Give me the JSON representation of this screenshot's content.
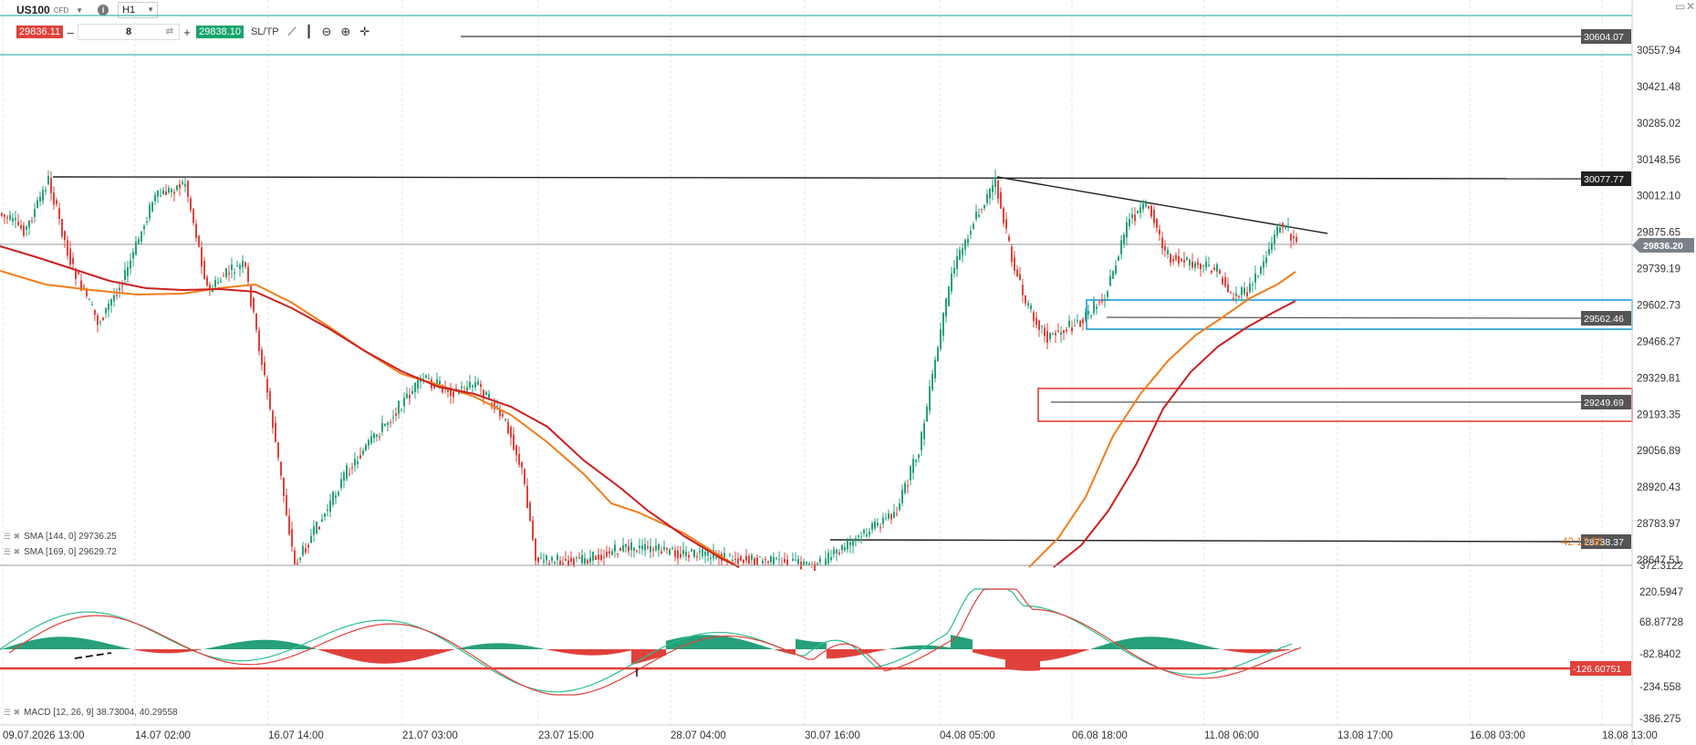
{
  "header": {
    "symbol": "US100",
    "symbol_type": "CFD",
    "timeframe": "H1"
  },
  "trade": {
    "sell_price": "29836.11",
    "quantity": "8",
    "buy_price": "29838.10",
    "sltp_label": "SL/TP"
  },
  "price_axis": [
    "30557.94",
    "30421.48",
    "30285.02",
    "30148.56",
    "30012.10",
    "29875.65",
    "29739.19",
    "29602.73",
    "29466.27",
    "29329.81",
    "29193.35",
    "29056.89",
    "28920.43",
    "28783.97",
    "28647.51"
  ],
  "price_tags": {
    "top_line": "30604.07",
    "resistance": "30077.77",
    "current": "29836.20",
    "blue_zone": "29562.46",
    "red_zone": "29249.69",
    "lower_line": "28738.37",
    "lower_overlay": "42 17:56"
  },
  "macd_axis": [
    "372.3122",
    "220.5947",
    "68.87728",
    "-82.8402",
    "-234.558",
    "-386.275"
  ],
  "macd_tag": "-126.60751",
  "indicators": {
    "sma1": "SMA [144, 0] 29736.25",
    "sma2": "SMA [169, 0] 29629.72",
    "macd": "MACD [12, 26, 9] 38.73004, 40.29558"
  },
  "time_axis": [
    "09.07.2026 13:00",
    "14.07 02:00",
    "16.07 14:00",
    "21.07 03:00",
    "23.07 15:00",
    "28.07 04:00",
    "30.07 16:00",
    "04.08 05:00",
    "06.08 18:00",
    "11.08 06:00",
    "13.08 17:00",
    "16.08 03:00",
    "18.08 13:00"
  ],
  "colors": {
    "bull": "#26a07a",
    "bear": "#e0413b",
    "sma144": "#f07d1a",
    "sma169": "#cc1f1f",
    "blue_zone": "#1e9bd7",
    "red_zone": "#e0413b",
    "sell": "#e0413b",
    "buy": "#17a56b"
  },
  "icons": [
    "info-icon",
    "line-chart-icon",
    "candles-icon",
    "zoom-out-icon",
    "zoom-in-icon",
    "crosshair-icon"
  ],
  "chart_data": {
    "type": "line",
    "symbol": "US100",
    "timeframe": "H1",
    "x_range": [
      "09.07.2026 13:00",
      "18.08 13:00"
    ],
    "ylim": [
      28647.51,
      30557.94
    ],
    "key_points": [
      {
        "t": "09.07.2026 13:00",
        "price": 29930
      },
      {
        "t": "09.07 18:00",
        "price": 30077
      },
      {
        "t": "14.07 02:00",
        "price": 29550
      },
      {
        "t": "15.07",
        "price": 30060
      },
      {
        "t": "17.07",
        "price": 28660
      },
      {
        "t": "21.07 03:00",
        "price": 29320
      },
      {
        "t": "23.07 15:00",
        "price": 28700
      },
      {
        "t": "03.08",
        "price": 28700
      },
      {
        "t": "04.08 05:00",
        "price": 30077
      },
      {
        "t": "05.08",
        "price": 29250
      },
      {
        "t": "07.08",
        "price": 30000
      },
      {
        "t": "09.08",
        "price": 29700
      },
      {
        "t": "11.08 06:00",
        "price": 29562
      },
      {
        "t": "12.08",
        "price": 30000
      },
      {
        "t": "12.08 13:00",
        "price": 29836.2
      }
    ],
    "sma": [
      {
        "period": 144,
        "value": 29736.25
      },
      {
        "period": 169,
        "value": 29629.72
      }
    ],
    "horizontal_levels": [
      30604.07,
      30077.77,
      29562.46,
      29249.69,
      28738.37
    ],
    "macd": {
      "params": [
        12,
        26,
        9
      ],
      "macd": 38.73004,
      "signal": 40.29558,
      "ylim": [
        -386.275,
        372.3122
      ],
      "level": -126.60751
    }
  }
}
